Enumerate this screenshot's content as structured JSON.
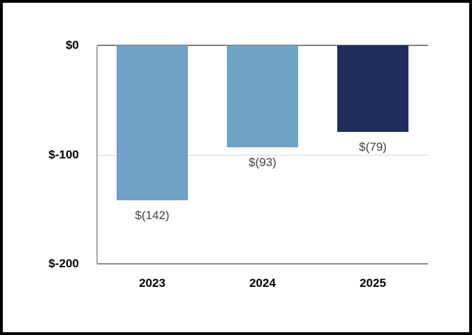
{
  "chart_data": {
    "type": "bar",
    "categories": [
      "2023",
      "2024",
      "2025"
    ],
    "values": [
      -142,
      -93,
      -79
    ],
    "data_labels": [
      "$(142)",
      "$(93)",
      "$(79)"
    ],
    "y_ticks": [
      "$0",
      "$-100",
      "$-200"
    ],
    "ylim": [
      -200,
      0
    ],
    "bar_colors": [
      "#6FA2C4",
      "#6FA2C4",
      "#1F2D5C"
    ],
    "gridline_value": -100,
    "legend": "none",
    "title": ""
  },
  "colors": {
    "bar_light_blue": "#6FA2C4",
    "bar_dark_navy": "#1F2D5C",
    "gridline": "#D9D9D9",
    "axis_line": "#808080",
    "data_label_text": "#404040",
    "axis_label_text": "#000000",
    "frame_border": "#000000"
  }
}
